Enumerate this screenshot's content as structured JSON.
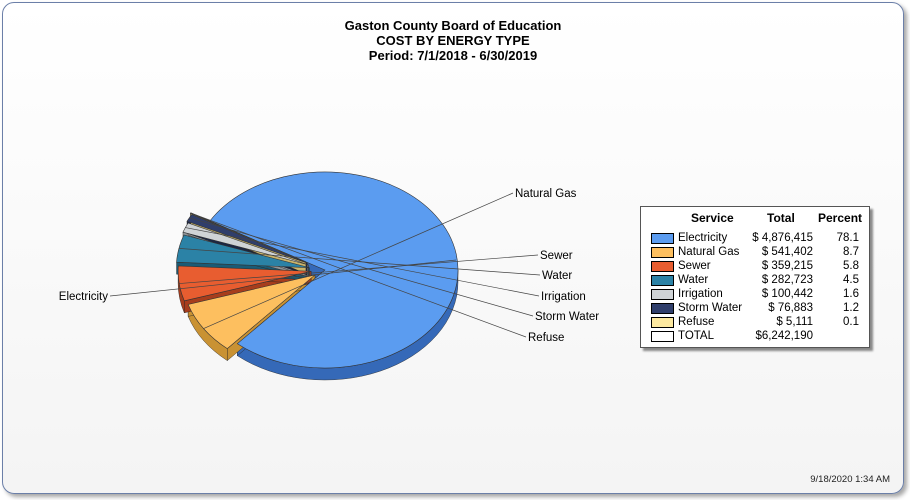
{
  "title": {
    "line1": "Gaston County Board of Education",
    "line2": "COST BY ENERGY TYPE",
    "line3": "Period: 7/1/2018 - 6/30/2019"
  },
  "legend": {
    "header_service": "Service",
    "header_total": "Total",
    "header_percent": "Percent",
    "total_label": "TOTAL",
    "total_value": "$6,242,190"
  },
  "timestamp": "9/18/2020 1:34 AM",
  "chart_data": {
    "type": "pie",
    "title": "Gaston County Board of Education COST BY ENERGY TYPE Period: 7/1/2018 - 6/30/2019",
    "categories": [
      "Electricity",
      "Natural Gas",
      "Sewer",
      "Water",
      "Irrigation",
      "Storm Water",
      "Refuse"
    ],
    "values": [
      4876415,
      541402,
      359215,
      282723,
      100442,
      76883,
      5111
    ],
    "totals_text": [
      "$ 4,876,415",
      "$ 541,402",
      "$ 359,215",
      "$ 282,723",
      "$ 100,442",
      "$ 76,883",
      "$ 5,111"
    ],
    "percents": [
      "78.1",
      "8.7",
      "5.8",
      "4.5",
      "1.6",
      "1.2",
      "0.1"
    ],
    "colors": [
      "#5b9cf0",
      "#fdbf5f",
      "#e85d30",
      "#2b82a6",
      "#cfd3d6",
      "#2f3e6b",
      "#fde9a0"
    ],
    "side_colors": [
      "#3569b8",
      "#c99233",
      "#a73d1c",
      "#1b5b75",
      "#8f9396",
      "#1b2644",
      "#c9b46c"
    ],
    "legend_placement": "right"
  }
}
